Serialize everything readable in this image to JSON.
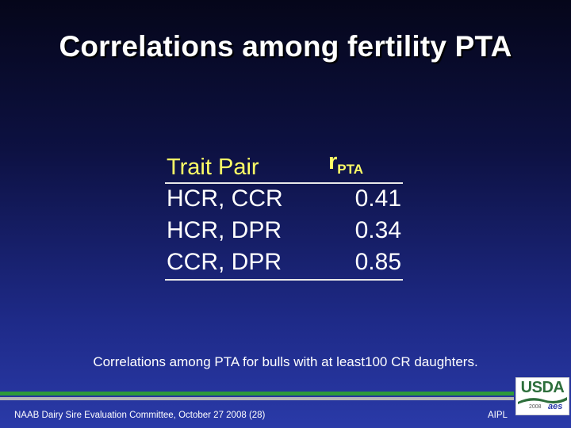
{
  "slide": {
    "title": "Correlations among fertility PTA",
    "table": {
      "header_trait": "Trait Pair",
      "header_r": "r",
      "header_r_sub": "PTA",
      "rows": [
        {
          "pair": "HCR, CCR",
          "value": "0.41"
        },
        {
          "pair": "HCR, DPR",
          "value": "0.34"
        },
        {
          "pair": "CCR, DPR",
          "value": "0.85"
        }
      ]
    },
    "note": "Correlations among PTA for bulls with at least100 CR daughters.",
    "footer_left": "NAAB Dairy Sire Evaluation Committee, October 27 2008 (28)",
    "footer_right": "AIPL",
    "logo": {
      "text": "USDA",
      "year": "2008",
      "mark": "aes"
    }
  },
  "colors": {
    "accent_yellow": "#ffff66",
    "green_bar": "#2e9a3a",
    "gray_bar": "#b5b5b5"
  }
}
